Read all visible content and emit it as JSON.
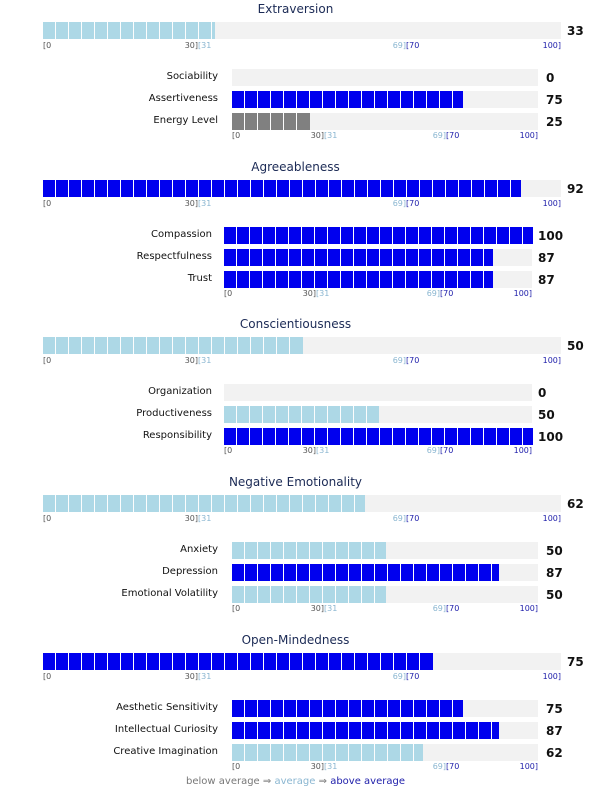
{
  "colors": {
    "below": "#add8e6",
    "average": "#add8e6",
    "above": "#0000ee",
    "low": "#808080",
    "track": "#f2f2f2"
  },
  "scale": {
    "start": "[0",
    "low_end": "30]",
    "avg_start": "[31",
    "avg_end": "69]",
    "high_start": "[70",
    "end": "100]"
  },
  "sections": [
    {
      "title": "Extraversion",
      "score": 33,
      "score_label": "33",
      "level": "average",
      "facets": [
        {
          "label": "Sociability",
          "score": 0,
          "score_label": "0",
          "level": "below"
        },
        {
          "label": "Assertiveness",
          "score": 75,
          "score_label": "75",
          "level": "above"
        },
        {
          "label": "Energy Level",
          "score": 25,
          "score_label": "25",
          "level": "low"
        }
      ]
    },
    {
      "title": "Agreeableness",
      "score": 92,
      "score_label": "92",
      "level": "above",
      "facets": [
        {
          "label": "Compassion",
          "score": 100,
          "score_label": "100",
          "level": "above"
        },
        {
          "label": "Respectfulness",
          "score": 87,
          "score_label": "87",
          "level": "above"
        },
        {
          "label": "Trust",
          "score": 87,
          "score_label": "87",
          "level": "above"
        }
      ]
    },
    {
      "title": "Conscientiousness",
      "score": 50,
      "score_label": "50",
      "level": "average",
      "facets": [
        {
          "label": "Organization",
          "score": 0,
          "score_label": "0",
          "level": "below"
        },
        {
          "label": "Productiveness",
          "score": 50,
          "score_label": "50",
          "level": "average"
        },
        {
          "label": "Responsibility",
          "score": 100,
          "score_label": "100",
          "level": "above"
        }
      ]
    },
    {
      "title": "Negative Emotionality",
      "score": 62,
      "score_label": "62",
      "level": "average",
      "facets": [
        {
          "label": "Anxiety",
          "score": 50,
          "score_label": "50",
          "level": "average"
        },
        {
          "label": "Depression",
          "score": 87,
          "score_label": "87",
          "level": "above"
        },
        {
          "label": "Emotional Volatility",
          "score": 50,
          "score_label": "50",
          "level": "average"
        }
      ]
    },
    {
      "title": "Open-Mindedness",
      "score": 75,
      "score_label": "75",
      "level": "above",
      "facets": [
        {
          "label": "Aesthetic Sensitivity",
          "score": 75,
          "score_label": "75",
          "level": "above"
        },
        {
          "label": "Intellectual Curiosity",
          "score": 87,
          "score_label": "87",
          "level": "above"
        },
        {
          "label": "Creative Imagination",
          "score": 62,
          "score_label": "62",
          "level": "average"
        }
      ]
    }
  ],
  "legend": {
    "below": "below average",
    "arrow": "⇒",
    "average": "average",
    "above": "above average"
  }
}
